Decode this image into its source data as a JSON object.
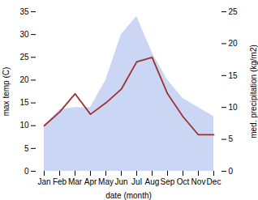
{
  "chart_data": {
    "type": "line",
    "categories": [
      "Jan",
      "Feb",
      "Mar",
      "Apr",
      "May",
      "Jun",
      "Jul",
      "Aug",
      "Sep",
      "Oct",
      "Nov",
      "Dec"
    ],
    "series": [
      {
        "type": "area",
        "color": "#b3c4f0",
        "values": [
          10,
          13.5,
          14,
          14,
          20,
          30,
          34,
          26,
          20,
          16,
          14,
          12
        ]
      },
      {
        "type": "line",
        "color": "#a03030",
        "values": [
          10,
          13,
          17,
          12.5,
          15,
          18,
          24,
          25,
          17,
          12,
          8,
          8
        ]
      }
    ],
    "x_label": "date (month)",
    "y_label": "max temp (C)",
    "y2_label": "med. precipitation (kg/m2)",
    "ylim": [
      0,
      35
    ],
    "yticks": [
      0,
      5,
      10,
      15,
      20,
      25,
      30,
      35
    ],
    "y2lim": [
      0,
      25
    ],
    "y2ticks": [
      0,
      5,
      10,
      15,
      20,
      25
    ],
    "grid": false
  }
}
